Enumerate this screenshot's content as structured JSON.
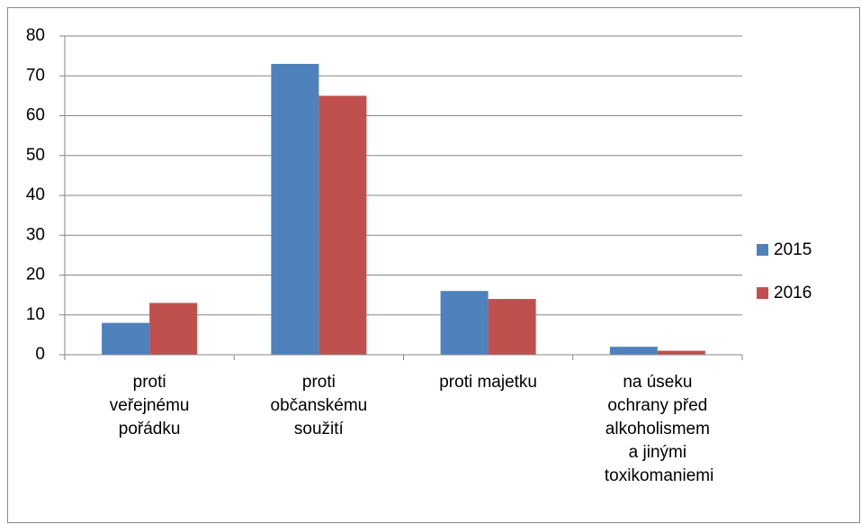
{
  "chart_data": {
    "type": "bar",
    "categories": [
      "proti veřejnému pořádku",
      "proti občanskému soužití",
      "proti majetku",
      "na úseku ochrany před alkoholismem a jinými toxikomaniemi"
    ],
    "series": [
      {
        "name": "2015",
        "color": "#4f81bd",
        "values": [
          8,
          73,
          16,
          2
        ]
      },
      {
        "name": "2016",
        "color": "#c0504d",
        "values": [
          13,
          65,
          14,
          1
        ]
      }
    ],
    "ylim": [
      0,
      80
    ],
    "yticks": [
      0,
      10,
      20,
      30,
      40,
      50,
      60,
      70,
      80
    ],
    "grid": true,
    "legend": "right"
  }
}
